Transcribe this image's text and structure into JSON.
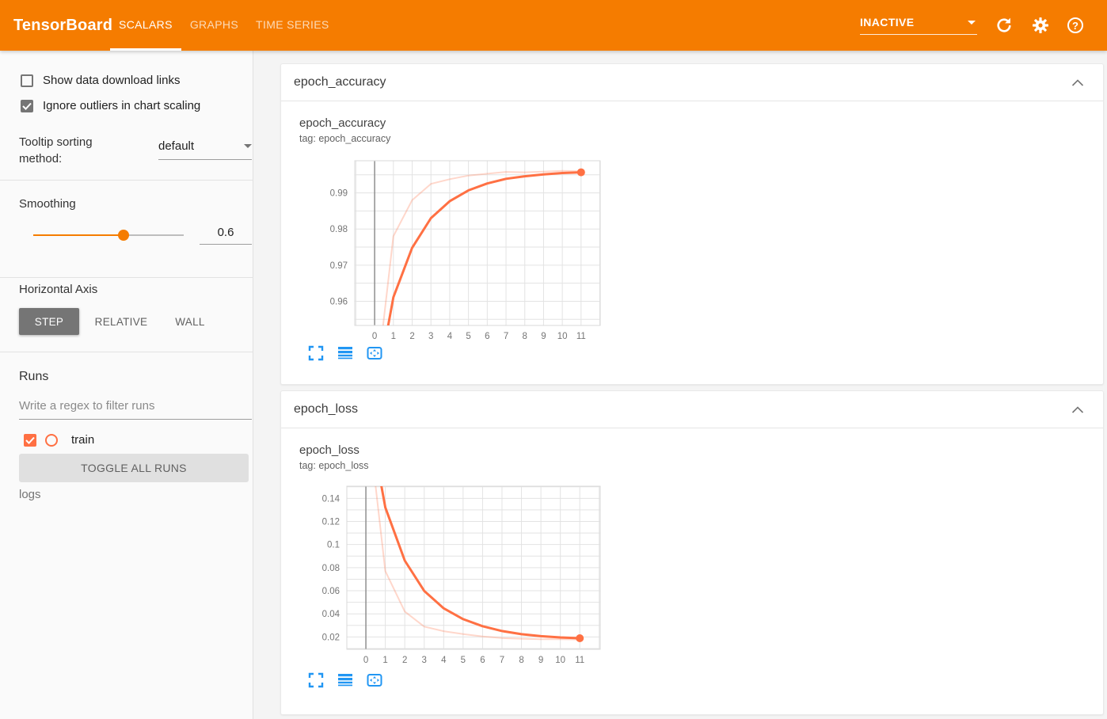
{
  "header": {
    "title": "TensorBoard",
    "tabs": [
      {
        "label": "SCALARS",
        "active": true
      },
      {
        "label": "GRAPHS",
        "active": false
      },
      {
        "label": "TIME SERIES",
        "active": false
      }
    ],
    "status": "INACTIVE"
  },
  "icons": {
    "help_glyph": "?",
    "refresh": "circular-arrow",
    "settings": "gear",
    "status_caret": "caret-down",
    "card_collapse": "chevron-up",
    "chart_expand": "fullscreen-corners",
    "chart_log_scale": "stacked-lines",
    "chart_fit_domain": "box-with-arrows"
  },
  "sidebar": {
    "show_links_label": "Show data download links",
    "show_links_checked": false,
    "ignore_outliers_label": "Ignore outliers in chart scaling",
    "ignore_outliers_checked": true,
    "tooltip_sorting_label": "Tooltip sorting method:",
    "tooltip_sorting_value": "default",
    "smoothing_label": "Smoothing",
    "smoothing_value": "0.6",
    "horizontal_axis_label": "Horizontal Axis",
    "axis_options": [
      {
        "label": "STEP",
        "active": true
      },
      {
        "label": "RELATIVE",
        "active": false
      },
      {
        "label": "WALL",
        "active": false
      }
    ],
    "runs_label": "Runs",
    "filter_placeholder": "Write a regex to filter runs",
    "runs": [
      {
        "name": "train",
        "checked": true,
        "color": "#ff7043"
      }
    ],
    "toggle_all_label": "TOGGLE ALL RUNS",
    "logs_label": "logs"
  },
  "cards": [
    {
      "header": "epoch_accuracy",
      "chart_title": "epoch_accuracy",
      "chart_tag": "tag: epoch_accuracy"
    },
    {
      "header": "epoch_loss",
      "chart_title": "epoch_loss",
      "chart_tag": "tag: epoch_loss"
    }
  ],
  "colors": {
    "header_bg": "#f57c00",
    "accent_orange": "#f57c00",
    "run_color": "#ff7043",
    "icon_blue": "#2196f3",
    "grid_line": "#e3e3e3",
    "zero_line": "#8f8f8f",
    "tick_text": "#757575"
  },
  "chart_data": [
    {
      "type": "line",
      "title": "epoch_accuracy",
      "tag": "epoch_accuracy",
      "run": "train",
      "color": "#ff7043",
      "x": [
        0,
        1,
        2,
        3,
        4,
        5,
        6,
        7,
        8,
        9,
        10,
        11
      ],
      "series": [
        {
          "name": "train (raw)",
          "style": "faded",
          "values": [
            0.933,
            0.978,
            0.988,
            0.9925,
            0.9938,
            0.9948,
            0.9953,
            0.9958,
            0.9957,
            0.9959,
            0.9961,
            0.996
          ]
        },
        {
          "name": "train (smoothed 0.6)",
          "style": "solid",
          "endpoint_dot": true,
          "values": [
            0.933,
            0.9611,
            0.9748,
            0.983,
            0.9877,
            0.9907,
            0.9926,
            0.9939,
            0.9946,
            0.9951,
            0.9955,
            0.9957
          ]
        }
      ],
      "xlim": [
        -1.06,
        12.02
      ],
      "ylim": [
        0.9533,
        0.9989
      ],
      "xticks": [
        "0",
        "1",
        "2",
        "3",
        "4",
        "5",
        "6",
        "7",
        "8",
        "9",
        "10",
        "11"
      ],
      "yticks": [
        {
          "v": 0.96,
          "label": "0.96"
        },
        {
          "v": 0.97,
          "label": "0.97"
        },
        {
          "v": 0.98,
          "label": "0.98"
        },
        {
          "v": 0.99,
          "label": "0.99"
        }
      ],
      "y_grid_step": 0.005,
      "grid": true,
      "legend_position": "none"
    },
    {
      "type": "line",
      "title": "epoch_loss",
      "tag": "epoch_loss",
      "run": "train",
      "color": "#ff7043",
      "x": [
        0,
        1,
        2,
        3,
        4,
        5,
        6,
        7,
        8,
        9,
        10,
        11
      ],
      "series": [
        {
          "name": "train (raw)",
          "style": "faded",
          "values": [
            0.224,
            0.077,
            0.042,
            0.029,
            0.025,
            0.0225,
            0.0205,
            0.019,
            0.0185,
            0.018,
            0.018,
            0.0178
          ]
        },
        {
          "name": "train (smoothed 0.6)",
          "style": "solid",
          "endpoint_dot": true,
          "values": [
            0.224,
            0.1321,
            0.0861,
            0.0599,
            0.0448,
            0.0354,
            0.0293,
            0.0251,
            0.0224,
            0.0207,
            0.0196,
            0.0189
          ]
        }
      ],
      "xlim": [
        -0.98,
        12.05
      ],
      "ylim": [
        0.0093,
        0.1505
      ],
      "xticks": [
        "0",
        "1",
        "2",
        "3",
        "4",
        "5",
        "6",
        "7",
        "8",
        "9",
        "10",
        "11"
      ],
      "yticks": [
        {
          "v": 0.02,
          "label": "0.02"
        },
        {
          "v": 0.04,
          "label": "0.04"
        },
        {
          "v": 0.06,
          "label": "0.06"
        },
        {
          "v": 0.08,
          "label": "0.08"
        },
        {
          "v": 0.1,
          "label": "0.1"
        },
        {
          "v": 0.12,
          "label": "0.12"
        },
        {
          "v": 0.14,
          "label": "0.14"
        }
      ],
      "y_grid_step": 0.01,
      "grid": true,
      "legend_position": "none"
    }
  ]
}
